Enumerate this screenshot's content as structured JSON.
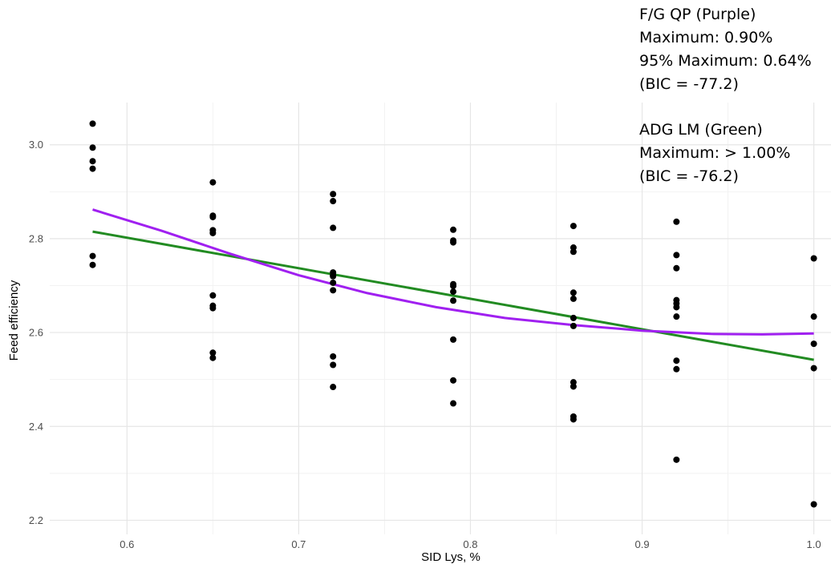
{
  "chart_data": {
    "type": "scatter",
    "title": "",
    "xlabel": "SID Lys, %",
    "ylabel": "Feed efficiency",
    "xlim": [
      0.555,
      1.01
    ],
    "ylim": [
      2.17,
      3.09
    ],
    "x_ticks": [
      "0.6",
      "0.7",
      "0.8",
      "0.9",
      "1.0"
    ],
    "y_ticks": [
      "2.2",
      "2.4",
      "2.6",
      "2.8",
      "3.0"
    ],
    "grid": true,
    "points": {
      "color": "#000000",
      "x": [
        0.58,
        0.58,
        0.58,
        0.58,
        0.58,
        0.58,
        0.65,
        0.65,
        0.65,
        0.65,
        0.65,
        0.65,
        0.65,
        0.65,
        0.65,
        0.65,
        0.72,
        0.72,
        0.72,
        0.72,
        0.72,
        0.72,
        0.72,
        0.72,
        0.72,
        0.72,
        0.72,
        0.79,
        0.79,
        0.79,
        0.79,
        0.79,
        0.79,
        0.79,
        0.79,
        0.79,
        0.79,
        0.86,
        0.86,
        0.86,
        0.86,
        0.86,
        0.86,
        0.86,
        0.86,
        0.86,
        0.86,
        0.86,
        0.92,
        0.92,
        0.92,
        0.92,
        0.92,
        0.92,
        0.92,
        0.92,
        0.92,
        0.92,
        1.0,
        1.0,
        1.0,
        1.0,
        1.0
      ],
      "y": [
        3.045,
        2.994,
        2.965,
        2.949,
        2.763,
        2.744,
        2.92,
        2.849,
        2.846,
        2.818,
        2.812,
        2.679,
        2.657,
        2.652,
        2.557,
        2.546,
        2.895,
        2.88,
        2.823,
        2.728,
        2.722,
        2.706,
        2.69,
        2.549,
        2.531,
        2.484,
        2.72,
        2.819,
        2.796,
        2.792,
        2.703,
        2.699,
        2.687,
        2.668,
        2.585,
        2.498,
        2.449,
        2.827,
        2.781,
        2.772,
        2.685,
        2.672,
        2.631,
        2.614,
        2.494,
        2.485,
        2.421,
        2.415,
        2.836,
        2.765,
        2.737,
        2.669,
        2.662,
        2.654,
        2.634,
        2.54,
        2.522,
        2.329,
        2.758,
        2.634,
        2.576,
        2.524,
        2.234
      ]
    },
    "series": [
      {
        "name": "F/G QP (Purple)",
        "color": "#a020f0",
        "x": [
          0.58,
          0.62,
          0.66,
          0.7,
          0.74,
          0.78,
          0.82,
          0.86,
          0.9,
          0.94,
          0.97,
          1.0
        ],
        "y": [
          2.862,
          2.817,
          2.768,
          2.722,
          2.684,
          2.654,
          2.631,
          2.616,
          2.604,
          2.597,
          2.596,
          2.598
        ]
      },
      {
        "name": "ADG LM (Green)",
        "color": "#228b22",
        "x": [
          0.58,
          1.0
        ],
        "y": [
          2.815,
          2.542
        ]
      }
    ]
  },
  "annotations": {
    "fg": {
      "line1": "F/G QP (Purple)",
      "line2": "Maximum: 0.90%",
      "line3": "95% Maximum: 0.64%",
      "line4": "(BIC = -77.2)"
    },
    "adg": {
      "line1": "ADG LM (Green)",
      "line2": "Maximum: > 1.00%",
      "line3": "(BIC = -76.2)"
    }
  }
}
